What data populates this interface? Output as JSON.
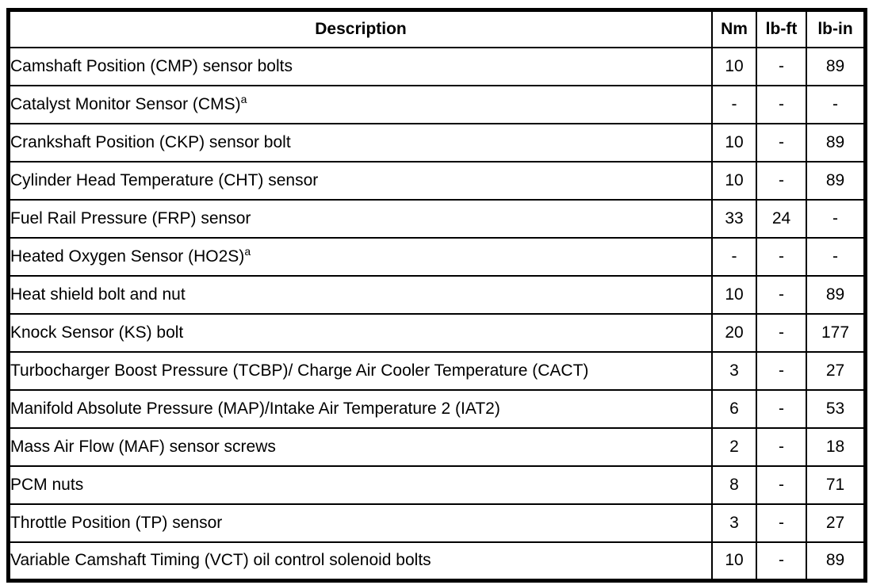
{
  "colors": {
    "border": "#000000",
    "background": "#ffffff",
    "text": "#000000"
  },
  "table": {
    "columns": [
      "Description",
      "Nm",
      "lb-ft",
      "lb-in"
    ],
    "rows": [
      {
        "description": "Camshaft Position (CMP) sensor bolts",
        "sup": "",
        "nm": "10",
        "lbft": "-",
        "lbin": "89"
      },
      {
        "description": "Catalyst Monitor Sensor (CMS)",
        "sup": "a",
        "nm": "-",
        "lbft": "-",
        "lbin": "-"
      },
      {
        "description": "Crankshaft Position (CKP) sensor bolt",
        "sup": "",
        "nm": "10",
        "lbft": "-",
        "lbin": "89"
      },
      {
        "description": "Cylinder Head Temperature (CHT) sensor",
        "sup": "",
        "nm": "10",
        "lbft": "-",
        "lbin": "89"
      },
      {
        "description": "Fuel Rail Pressure (FRP) sensor",
        "sup": "",
        "nm": "33",
        "lbft": "24",
        "lbin": "-"
      },
      {
        "description": "Heated Oxygen Sensor (HO2S)",
        "sup": "a",
        "nm": "-",
        "lbft": "-",
        "lbin": "-"
      },
      {
        "description": "Heat shield bolt and nut",
        "sup": "",
        "nm": "10",
        "lbft": "-",
        "lbin": "89"
      },
      {
        "description": "Knock Sensor (KS) bolt",
        "sup": "",
        "nm": "20",
        "lbft": "-",
        "lbin": "177"
      },
      {
        "description": "Turbocharger Boost Pressure (TCBP)/ Charge Air Cooler Temperature (CACT)",
        "sup": "",
        "nm": "3",
        "lbft": "-",
        "lbin": "27"
      },
      {
        "description": "Manifold Absolute Pressure (MAP)/Intake Air Temperature 2 (IAT2)",
        "sup": "",
        "nm": "6",
        "lbft": "-",
        "lbin": "53"
      },
      {
        "description": "Mass Air Flow (MAF) sensor screws",
        "sup": "",
        "nm": "2",
        "lbft": "-",
        "lbin": "18"
      },
      {
        "description": "PCM nuts",
        "sup": "",
        "nm": "8",
        "lbft": "-",
        "lbin": "71"
      },
      {
        "description": "Throttle Position (TP) sensor",
        "sup": "",
        "nm": "3",
        "lbft": "-",
        "lbin": "27"
      },
      {
        "description": "Variable Camshaft Timing (VCT) oil control solenoid bolts",
        "sup": "",
        "nm": "10",
        "lbft": "-",
        "lbin": "89"
      }
    ]
  }
}
